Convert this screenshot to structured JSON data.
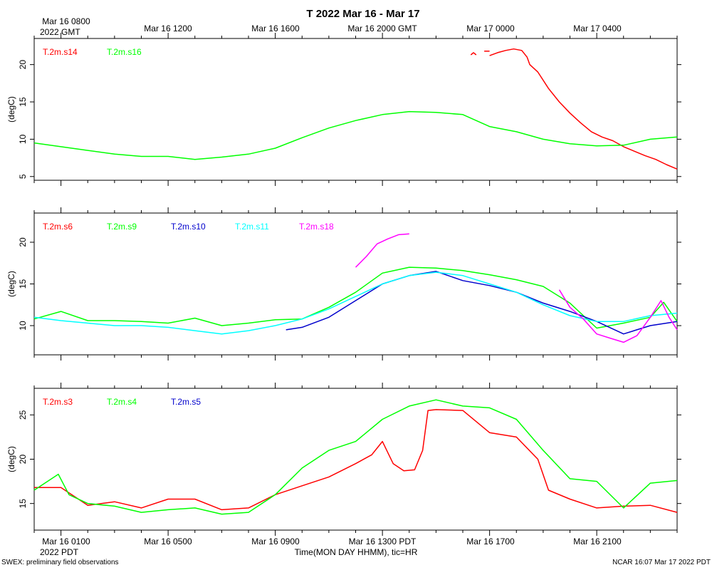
{
  "title": "T 2022 Mar 16 - Mar 17",
  "top_time_labels": [
    "Mar 16 0800",
    "Mar 16 1200",
    "Mar 16 1600",
    "Mar 16 2000 GMT",
    "Mar 17 0000",
    "Mar 17 0400"
  ],
  "top_time_sub": "2022 GMT",
  "bottom_time_labels": [
    "Mar 16 0100",
    "Mar 16 0500",
    "Mar 16 0900",
    "Mar 16 1300 PDT",
    "Mar 16 1700",
    "Mar 16 2100"
  ],
  "bottom_time_sub": "2022 PDT",
  "xlabel": "Time(MON DAY HHMM), tic=HR",
  "footer_left": "SWEX: preliminary field observations",
  "footer_right": "NCAR 16:07 Mar 17 2022 PDT",
  "chart_data": [
    {
      "type": "line",
      "ylabel": "(degC)",
      "ylim": [
        4.5,
        23.5
      ],
      "yticks": [
        5,
        10,
        15,
        20
      ],
      "xlim": [
        0,
        24
      ],
      "series": [
        {
          "name": "T.2m.s14",
          "color": "#ff0000",
          "segments": [
            [
              [
                16.3,
                21.3
              ],
              [
                16.4,
                21.6
              ],
              [
                16.5,
                21.3
              ]
            ],
            [
              [
                16.8,
                21.8
              ],
              [
                17.0,
                21.8
              ]
            ],
            [
              [
                17.0,
                21.2
              ],
              [
                17.3,
                21.6
              ],
              [
                17.6,
                21.9
              ],
              [
                17.9,
                22.1
              ],
              [
                18.2,
                21.9
              ],
              [
                18.4,
                21.0
              ],
              [
                18.5,
                20.0
              ],
              [
                18.8,
                19.0
              ],
              [
                19.2,
                16.8
              ],
              [
                19.6,
                15.0
              ],
              [
                20.0,
                13.5
              ],
              [
                20.4,
                12.2
              ],
              [
                20.8,
                11.0
              ],
              [
                21.2,
                10.3
              ],
              [
                21.6,
                9.8
              ],
              [
                22.0,
                9.0
              ],
              [
                22.4,
                8.4
              ],
              [
                22.8,
                7.8
              ],
              [
                23.2,
                7.3
              ],
              [
                23.6,
                6.6
              ],
              [
                24.0,
                6.0
              ]
            ]
          ]
        },
        {
          "name": "T.2m.s16",
          "color": "#00ff00",
          "segments": [
            [
              [
                0,
                9.5
              ],
              [
                1,
                9.0
              ],
              [
                2,
                8.5
              ],
              [
                3,
                8.0
              ],
              [
                4,
                7.7
              ],
              [
                5,
                7.7
              ],
              [
                6,
                7.3
              ],
              [
                7,
                7.6
              ],
              [
                8,
                8.0
              ],
              [
                9,
                8.8
              ],
              [
                10,
                10.2
              ],
              [
                11,
                11.5
              ],
              [
                12,
                12.5
              ],
              [
                13,
                13.3
              ],
              [
                14,
                13.7
              ],
              [
                15,
                13.6
              ],
              [
                16,
                13.3
              ],
              [
                17,
                11.7
              ],
              [
                18,
                11.0
              ],
              [
                19,
                10.0
              ],
              [
                20,
                9.4
              ],
              [
                21,
                9.1
              ],
              [
                22,
                9.2
              ],
              [
                23,
                10.0
              ],
              [
                24,
                10.3
              ]
            ]
          ]
        }
      ]
    },
    {
      "type": "line",
      "ylabel": "(degC)",
      "ylim": [
        6.5,
        23.5
      ],
      "yticks": [
        10,
        15,
        20
      ],
      "xlim": [
        0,
        24
      ],
      "series": [
        {
          "name": "T.2m.s6",
          "color": "#ff0000",
          "segments": []
        },
        {
          "name": "T.2m.s9",
          "color": "#00ff00",
          "segments": [
            [
              [
                0,
                10.8
              ],
              [
                1,
                11.7
              ],
              [
                2,
                10.6
              ],
              [
                3,
                10.6
              ],
              [
                4,
                10.5
              ],
              [
                5,
                10.3
              ],
              [
                6,
                10.9
              ],
              [
                7,
                10.0
              ],
              [
                8,
                10.3
              ],
              [
                9,
                10.7
              ],
              [
                10,
                10.8
              ],
              [
                11,
                12.2
              ],
              [
                12,
                14.0
              ],
              [
                13,
                16.3
              ],
              [
                14,
                17.0
              ],
              [
                15,
                16.9
              ],
              [
                16,
                16.6
              ],
              [
                17,
                16.1
              ],
              [
                18,
                15.5
              ],
              [
                19,
                14.7
              ],
              [
                20,
                12.7
              ],
              [
                21,
                9.7
              ],
              [
                22,
                10.3
              ],
              [
                23,
                11.0
              ],
              [
                23.5,
                12.8
              ],
              [
                24,
                10.5
              ]
            ]
          ]
        },
        {
          "name": "T.2m.s10",
          "color": "#0000cc",
          "segments": [
            [
              [
                9.4,
                9.5
              ],
              [
                10,
                9.8
              ],
              [
                11,
                11.0
              ],
              [
                12,
                13.0
              ],
              [
                13,
                15.0
              ],
              [
                14,
                16.0
              ],
              [
                15,
                16.5
              ],
              [
                16,
                15.4
              ],
              [
                17,
                14.8
              ],
              [
                18,
                14.0
              ],
              [
                19,
                12.7
              ],
              [
                20,
                11.7
              ],
              [
                21,
                10.5
              ],
              [
                22,
                9.0
              ],
              [
                23,
                10.0
              ],
              [
                24,
                10.5
              ]
            ]
          ]
        },
        {
          "name": "T.2m.s11",
          "color": "#00ffff",
          "segments": [
            [
              [
                0,
                11.0
              ],
              [
                1,
                10.6
              ],
              [
                2,
                10.3
              ],
              [
                3,
                10.0
              ],
              [
                4,
                10.0
              ],
              [
                5,
                9.8
              ],
              [
                6,
                9.4
              ],
              [
                7,
                9.0
              ],
              [
                8,
                9.4
              ],
              [
                9,
                10.0
              ],
              [
                10,
                10.8
              ],
              [
                11,
                12.0
              ],
              [
                12,
                13.5
              ],
              [
                13,
                15.0
              ],
              [
                14,
                16.0
              ],
              [
                15,
                16.4
              ],
              [
                16,
                16.0
              ],
              [
                17,
                15.0
              ],
              [
                18,
                14.0
              ],
              [
                19,
                12.5
              ],
              [
                20,
                11.2
              ],
              [
                21,
                10.5
              ],
              [
                22,
                10.5
              ],
              [
                23,
                11.2
              ],
              [
                24,
                11.5
              ]
            ]
          ]
        },
        {
          "name": "T.2m.s18",
          "color": "#ff00ff",
          "segments": [
            [
              [
                12.0,
                17.0
              ],
              [
                12.4,
                18.3
              ],
              [
                12.8,
                19.8
              ],
              [
                13.2,
                20.4
              ],
              [
                13.6,
                20.9
              ],
              [
                14.0,
                21.0
              ]
            ],
            [
              [
                19.6,
                14.3
              ],
              [
                20.0,
                12.2
              ],
              [
                20.5,
                10.8
              ],
              [
                21.0,
                9.0
              ],
              [
                21.5,
                8.5
              ],
              [
                22.0,
                8.0
              ],
              [
                22.5,
                8.8
              ],
              [
                23.0,
                11.0
              ],
              [
                23.4,
                13.0
              ],
              [
                23.7,
                11.0
              ],
              [
                24.0,
                9.5
              ]
            ]
          ]
        }
      ]
    },
    {
      "type": "line",
      "ylabel": "(degC)",
      "ylim": [
        12,
        28
      ],
      "yticks": [
        15,
        20,
        25
      ],
      "xlim": [
        0,
        24
      ],
      "series": [
        {
          "name": "T.2m.s3",
          "color": "#ff0000",
          "segments": [
            [
              [
                0,
                16.8
              ],
              [
                1,
                16.8
              ],
              [
                2,
                14.8
              ],
              [
                3,
                15.2
              ],
              [
                4,
                14.5
              ],
              [
                5,
                15.5
              ],
              [
                6,
                15.5
              ],
              [
                7,
                14.3
              ],
              [
                8,
                14.5
              ],
              [
                9,
                16.0
              ],
              [
                10,
                17.0
              ],
              [
                11,
                18.0
              ],
              [
                12,
                19.5
              ],
              [
                12.6,
                20.5
              ],
              [
                13.0,
                22.0
              ],
              [
                13.4,
                19.5
              ],
              [
                13.8,
                18.7
              ],
              [
                14.2,
                18.8
              ],
              [
                14.5,
                21.0
              ],
              [
                14.7,
                25.5
              ],
              [
                15.0,
                25.6
              ],
              [
                16.0,
                25.5
              ],
              [
                17.0,
                23.0
              ],
              [
                18.0,
                22.5
              ],
              [
                18.8,
                20.0
              ],
              [
                19.2,
                16.5
              ],
              [
                20.0,
                15.5
              ],
              [
                21.0,
                14.5
              ],
              [
                22.0,
                14.7
              ],
              [
                23.0,
                14.8
              ],
              [
                24.0,
                14.0
              ]
            ]
          ]
        },
        {
          "name": "T.2m.s4",
          "color": "#00ff00",
          "segments": [
            [
              [
                0,
                16.5
              ],
              [
                0.9,
                18.3
              ],
              [
                1.3,
                16.0
              ],
              [
                2,
                15.0
              ],
              [
                3,
                14.7
              ],
              [
                4,
                14.0
              ],
              [
                5,
                14.3
              ],
              [
                6,
                14.5
              ],
              [
                7,
                13.8
              ],
              [
                8,
                14.0
              ],
              [
                9,
                16.0
              ],
              [
                10,
                19.0
              ],
              [
                11,
                21.0
              ],
              [
                12,
                22.0
              ],
              [
                13,
                24.5
              ],
              [
                14,
                26.0
              ],
              [
                15,
                26.7
              ],
              [
                16,
                26.0
              ],
              [
                17,
                25.8
              ],
              [
                18,
                24.5
              ],
              [
                19,
                21.0
              ],
              [
                20,
                17.8
              ],
              [
                21,
                17.5
              ],
              [
                22,
                14.5
              ],
              [
                23,
                17.3
              ],
              [
                24,
                17.6
              ]
            ]
          ]
        },
        {
          "name": "T.2m.s5",
          "color": "#0000cc",
          "segments": []
        }
      ]
    }
  ]
}
